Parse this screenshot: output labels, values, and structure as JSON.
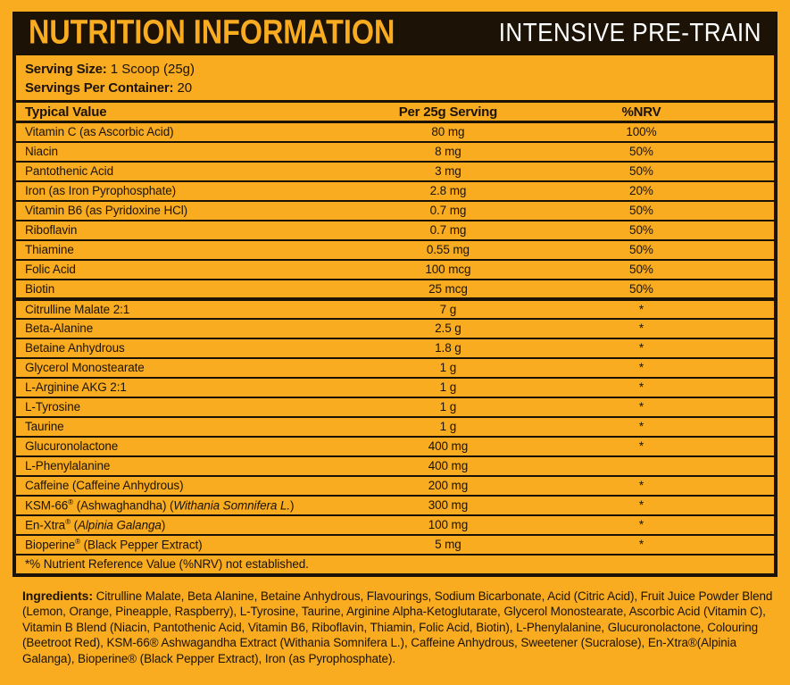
{
  "colors": {
    "background": "#F9AC20",
    "bar": "#1C1306",
    "title_text": "#F9AC20",
    "subtitle_text": "#FFFFFF",
    "body_text": "#1C1306"
  },
  "header": {
    "title": "NUTRITION INFORMATION",
    "subtitle": "INTENSIVE PRE-TRAIN"
  },
  "serving": {
    "size_label": "Serving Size:",
    "size_value": "1 Scoop (25g)",
    "container_label": "Servings Per Container:",
    "container_value": "20"
  },
  "table": {
    "columns": {
      "name": "Typical Value",
      "amount": "Per 25g Serving",
      "nrv": "%NRV"
    },
    "rows": [
      {
        "name": "Vitamin C (as Ascorbic Acid)",
        "amount": "80 mg",
        "nrv": "100%"
      },
      {
        "name": "Niacin",
        "amount": "8 mg",
        "nrv": "50%"
      },
      {
        "name": "Pantothenic Acid",
        "amount": "3 mg",
        "nrv": "50%"
      },
      {
        "name": "Iron (as Iron Pyrophosphate)",
        "amount": "2.8 mg",
        "nrv": "20%"
      },
      {
        "name": "Vitamin B6 (as Pyridoxine HCl)",
        "amount": "0.7 mg",
        "nrv": "50%"
      },
      {
        "name": "Riboflavin",
        "amount": "0.7 mg",
        "nrv": "50%"
      },
      {
        "name": "Thiamine",
        "amount": "0.55 mg",
        "nrv": "50%"
      },
      {
        "name": "Folic Acid",
        "amount": "100 mcg",
        "nrv": "50%"
      },
      {
        "name": "Biotin",
        "amount": "25 mcg",
        "nrv": "50%"
      },
      {
        "name": "Citrulline Malate 2:1",
        "amount": "7 g",
        "nrv": "*",
        "thick_top": true
      },
      {
        "name": "Beta-Alanine",
        "amount": "2.5 g",
        "nrv": "*"
      },
      {
        "name": "Betaine Anhydrous",
        "amount": "1.8 g",
        "nrv": "*"
      },
      {
        "name": "Glycerol Monostearate",
        "amount": "1 g",
        "nrv": "*"
      },
      {
        "name": "L-Arginine AKG 2:1",
        "amount": "1 g",
        "nrv": "*"
      },
      {
        "name": "L-Tyrosine",
        "amount": "1 g",
        "nrv": "*"
      },
      {
        "name": "Taurine",
        "amount": "1 g",
        "nrv": "*"
      },
      {
        "name": "Glucuronolactone",
        "amount": "400 mg",
        "nrv": "*"
      },
      {
        "name": "L-Phenylalanine",
        "amount": "400 mg",
        "nrv": ""
      },
      {
        "name": "Caffeine (Caffeine Anhydrous)",
        "amount": "200 mg",
        "nrv": "*"
      },
      {
        "name": [
          {
            "t": "KSM-66"
          },
          {
            "t": "®",
            "sup": true
          },
          {
            "t": " (Ashwaghandha) ("
          },
          {
            "t": "Withania Somnifera L.",
            "i": true
          },
          {
            "t": ")"
          }
        ],
        "amount": "300 mg",
        "nrv": "*"
      },
      {
        "name": [
          {
            "t": "En-Xtra"
          },
          {
            "t": "®",
            "sup": true
          },
          {
            "t": " ("
          },
          {
            "t": "Alpinia Galanga",
            "i": true
          },
          {
            "t": ")"
          }
        ],
        "amount": "100 mg",
        "nrv": "*"
      },
      {
        "name": [
          {
            "t": "Bioperine"
          },
          {
            "t": "®",
            "sup": true
          },
          {
            "t": " (Black Pepper Extract)"
          }
        ],
        "amount": "5 mg",
        "nrv": "*"
      }
    ],
    "footnote": "*% Nutrient Reference Value (%NRV) not established."
  },
  "ingredients": {
    "label": "Ingredients:",
    "text": " Citrulline Malate, Beta Alanine, Betaine Anhydrous, Flavourings, Sodium Bicarbonate, Acid (Citric Acid), Fruit Juice Powder Blend (Lemon, Orange, Pineapple, Raspberry), L-Tyrosine, Taurine, Arginine Alpha-Ketoglutarate, Glycerol Monostearate, Ascorbic Acid (Vitamin C), Vitamin B Blend (Niacin, Pantothenic Acid, Vitamin B6, Riboflavin, Thiamin, Folic Acid, Biotin), L-Phenylalanine, Glucuronolactone, Colouring (Beetroot Red), KSM-66® Ashwagandha Extract (Withania Somnifera L.), Caffeine Anhydrous, Sweetener (Sucralose), En-Xtra®(Alpinia Galanga), Bioperine® (Black Pepper Extract), Iron (as Pyrophosphate)."
  }
}
